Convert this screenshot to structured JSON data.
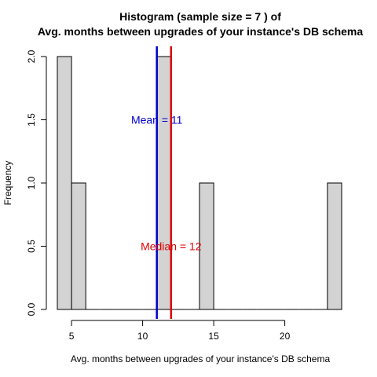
{
  "chart_data": {
    "type": "histogram",
    "title_line1": "Histogram (sample size =  7 ) of",
    "title_line2": "Avg. months between upgrades of your instance's DB schema",
    "xlabel": "Avg. months between upgrades of your instance's DB schema",
    "ylabel": "Frequency",
    "xlim": [
      3,
      25
    ],
    "ylim": [
      0,
      2
    ],
    "xticks": [
      5,
      10,
      15,
      20
    ],
    "yticks": [
      0.0,
      0.5,
      1.0,
      1.5,
      2.0
    ],
    "ytick_labels": [
      "0.0",
      "0.5",
      "1.0",
      "1.5",
      "2.0"
    ],
    "bin_width": 1,
    "bins": [
      {
        "x0": 4,
        "x1": 5,
        "count": 2
      },
      {
        "x0": 5,
        "x1": 6,
        "count": 1
      },
      {
        "x0": 6,
        "x1": 7,
        "count": 0
      },
      {
        "x0": 7,
        "x1": 8,
        "count": 0
      },
      {
        "x0": 8,
        "x1": 9,
        "count": 0
      },
      {
        "x0": 9,
        "x1": 10,
        "count": 0
      },
      {
        "x0": 10,
        "x1": 11,
        "count": 0
      },
      {
        "x0": 11,
        "x1": 12,
        "count": 2
      },
      {
        "x0": 12,
        "x1": 13,
        "count": 0
      },
      {
        "x0": 13,
        "x1": 14,
        "count": 0
      },
      {
        "x0": 14,
        "x1": 15,
        "count": 1
      },
      {
        "x0": 15,
        "x1": 16,
        "count": 0
      },
      {
        "x0": 16,
        "x1": 17,
        "count": 0
      },
      {
        "x0": 17,
        "x1": 18,
        "count": 0
      },
      {
        "x0": 18,
        "x1": 19,
        "count": 0
      },
      {
        "x0": 19,
        "x1": 20,
        "count": 0
      },
      {
        "x0": 20,
        "x1": 21,
        "count": 0
      },
      {
        "x0": 21,
        "x1": 22,
        "count": 0
      },
      {
        "x0": 22,
        "x1": 23,
        "count": 0
      },
      {
        "x0": 23,
        "x1": 24,
        "count": 1
      }
    ],
    "mean": {
      "value": 11,
      "label": "Mean = 11",
      "color": "#0000cc",
      "label_y": 1.5
    },
    "median": {
      "value": 12,
      "label": "Median = 12",
      "color": "#dd0000",
      "label_y": 0.5
    },
    "bar_fill": "#d3d3d3",
    "bar_stroke": "#000000"
  }
}
